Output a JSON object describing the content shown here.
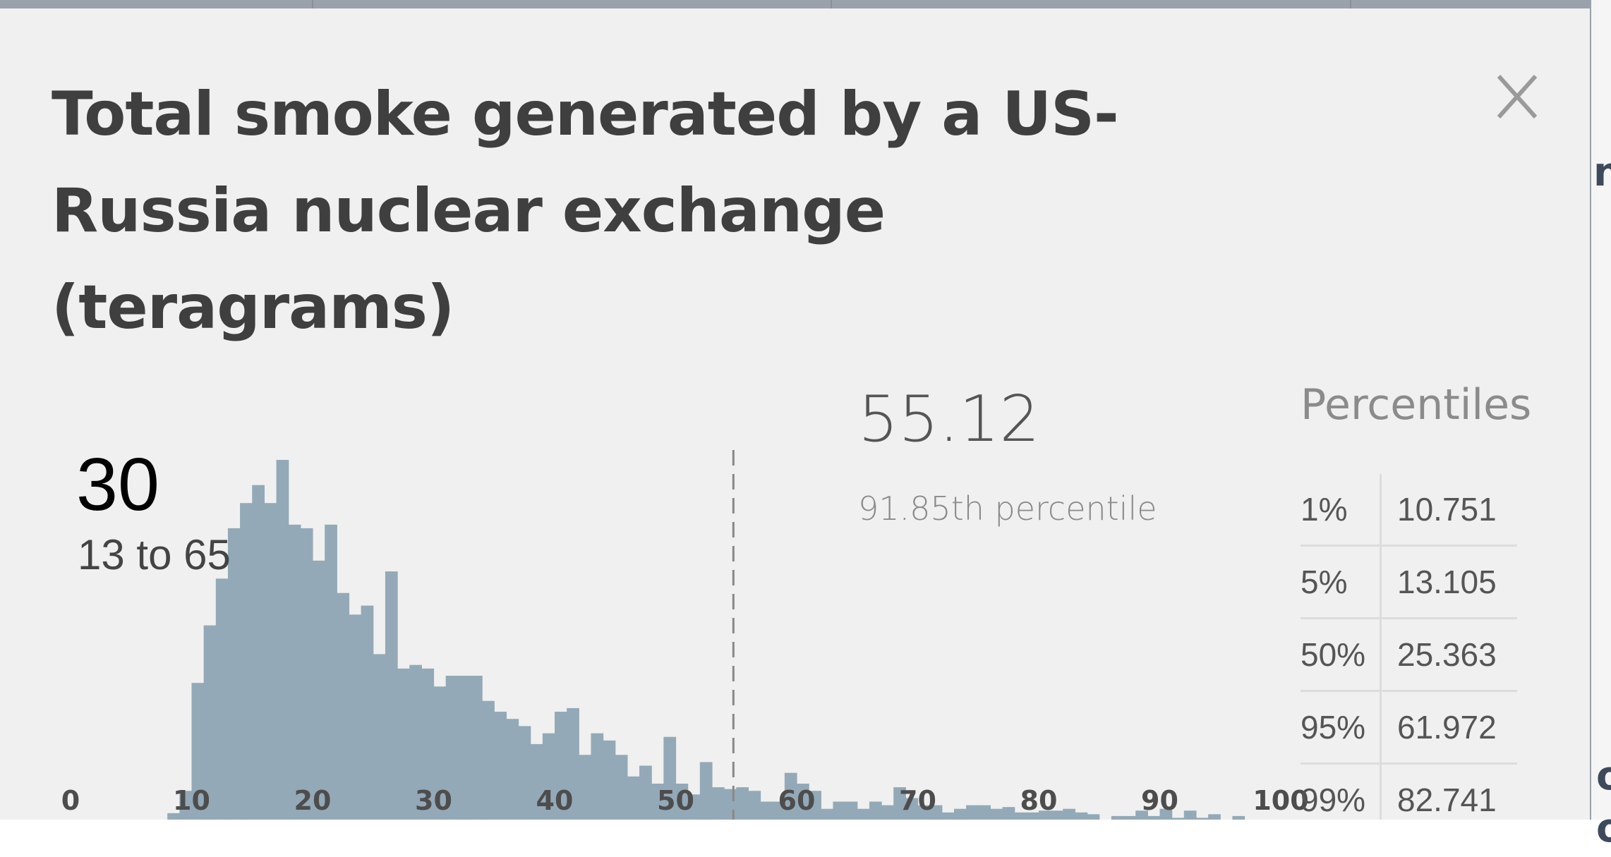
{
  "modal": {
    "title": "Total smoke generated by a US-Russia nuclear exchange (teragrams)",
    "close_icon": "close-icon"
  },
  "hover": {
    "value": "30",
    "range": "13 to 65"
  },
  "selection": {
    "value": "55.12",
    "percentile_text": "91.85th percentile"
  },
  "percentiles": {
    "title": "Percentiles",
    "rows": [
      {
        "p": "1%",
        "v": "10.751"
      },
      {
        "p": "5%",
        "v": "13.105"
      },
      {
        "p": "50%",
        "v": "25.363"
      },
      {
        "p": "95%",
        "v": "61.972"
      },
      {
        "p": "99%",
        "v": "82.741"
      }
    ]
  },
  "colors": {
    "bar": "#94a9b7",
    "modal_bg": "#f0f0f0",
    "title": "#3f3f3f",
    "tick": "#4d4d4d",
    "marker": "#888888"
  },
  "chart_data": {
    "type": "bar",
    "xlim": [
      0,
      100
    ],
    "bin_width": 1,
    "ticks": [
      "0",
      "10",
      "20",
      "30",
      "40",
      "50",
      "60",
      "70",
      "80",
      "90",
      "100"
    ],
    "marker_x": 55.12,
    "bins": [
      [
        8,
        1.8
      ],
      [
        9,
        8.0
      ],
      [
        10,
        38.0
      ],
      [
        11,
        54.0
      ],
      [
        12,
        67.0
      ],
      [
        13,
        81.0
      ],
      [
        14,
        88.0
      ],
      [
        15,
        93.0
      ],
      [
        16,
        88.0
      ],
      [
        17,
        100.0
      ],
      [
        18,
        82.0
      ],
      [
        19,
        81.0
      ],
      [
        20,
        72.0
      ],
      [
        21,
        82.0
      ],
      [
        22,
        63.0
      ],
      [
        23,
        57.0
      ],
      [
        24,
        59.5
      ],
      [
        25,
        46.0
      ],
      [
        26,
        69.0
      ],
      [
        27,
        42.0
      ],
      [
        28,
        43.0
      ],
      [
        29,
        42.0
      ],
      [
        30,
        37.0
      ],
      [
        31,
        40.0
      ],
      [
        32,
        40.0
      ],
      [
        33,
        40.0
      ],
      [
        34,
        33.0
      ],
      [
        35,
        30.0
      ],
      [
        36,
        28.0
      ],
      [
        37,
        26.0
      ],
      [
        38,
        21.0
      ],
      [
        39,
        24.0
      ],
      [
        40,
        30.0
      ],
      [
        41,
        31.0
      ],
      [
        42,
        18.0
      ],
      [
        43,
        24.0
      ],
      [
        44,
        22.0
      ],
      [
        45,
        18.0
      ],
      [
        46,
        12.0
      ],
      [
        47,
        15.0
      ],
      [
        48,
        10.0
      ],
      [
        49,
        23.0
      ],
      [
        50,
        10.0
      ],
      [
        51,
        7.0
      ],
      [
        52,
        16.0
      ],
      [
        53,
        9.0
      ],
      [
        54,
        8.5
      ],
      [
        55,
        9.0
      ],
      [
        56,
        8.0
      ],
      [
        57,
        5.0
      ],
      [
        58,
        5.0
      ],
      [
        59,
        13.0
      ],
      [
        60,
        10.0
      ],
      [
        61,
        8.0
      ],
      [
        62,
        3.0
      ],
      [
        63,
        5.0
      ],
      [
        64,
        5.0
      ],
      [
        65,
        3.0
      ],
      [
        66,
        5.0
      ],
      [
        67,
        4.0
      ],
      [
        68,
        9.0
      ],
      [
        69,
        6.0
      ],
      [
        70,
        4.0
      ],
      [
        71,
        4.0
      ],
      [
        72,
        2.0
      ],
      [
        73,
        3.0
      ],
      [
        74,
        4.0
      ],
      [
        75,
        4.0
      ],
      [
        76,
        3.0
      ],
      [
        77,
        3.5
      ],
      [
        78,
        2.0
      ],
      [
        79,
        2.0
      ],
      [
        80,
        2.5
      ],
      [
        81,
        2.5
      ],
      [
        82,
        3.0
      ],
      [
        83,
        2.0
      ],
      [
        84,
        1.5
      ],
      [
        86,
        1.0
      ],
      [
        87,
        1.0
      ],
      [
        88,
        2.5
      ],
      [
        89,
        1.0
      ],
      [
        90,
        3.0
      ],
      [
        91,
        0.5
      ],
      [
        92,
        2.5
      ],
      [
        93,
        0.5
      ],
      [
        94,
        1.5
      ],
      [
        96,
        1.0
      ]
    ]
  }
}
